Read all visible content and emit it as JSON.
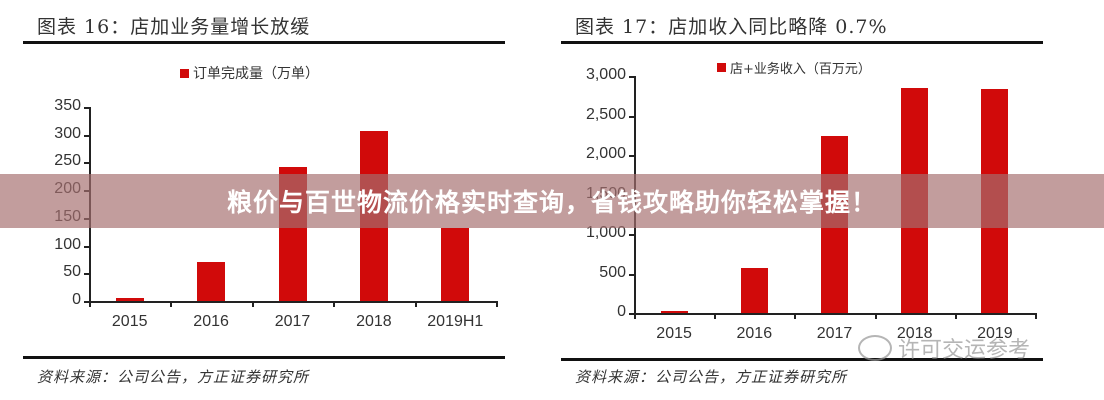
{
  "banner": {
    "text": "粮价与百世物流价格实时查询，省钱攻略助你轻松掌握！"
  },
  "watermark": {
    "text": "许可交运参考"
  },
  "charts": [
    {
      "title": "图表 16：店加业务量增长放缓",
      "legend": "订单完成量（万单）",
      "source": "资料来源：公司公告，方正证券研究所",
      "y_ticks": [
        "0",
        "50",
        "100",
        "150",
        "200",
        "250",
        "300",
        "350"
      ],
      "x_labels": [
        "2015",
        "2016",
        "2017",
        "2018",
        "2019H1"
      ]
    },
    {
      "title": "图表 17：店加收入同比略降 0.7%",
      "legend": "店+业务收入（百万元）",
      "source": "资料来源：公司公告，方正证券研究所",
      "y_ticks": [
        "0",
        "500",
        "1,000",
        "1,500",
        "2,000",
        "2,500",
        "3,000"
      ],
      "x_labels": [
        "2015",
        "2016",
        "2017",
        "2018",
        "2019"
      ]
    }
  ],
  "chart_data": [
    {
      "type": "bar",
      "title": "图表 16：店加业务量增长放缓",
      "categories": [
        "2015",
        "2016",
        "2017",
        "2018",
        "2019H1"
      ],
      "series": [
        {
          "name": "订单完成量（万单）",
          "values": [
            5,
            70,
            242,
            306,
            132
          ],
          "color": "#d10a0a"
        }
      ],
      "xlabel": "",
      "ylabel": "",
      "ylim": [
        0,
        350
      ],
      "y_ticks": [
        0,
        50,
        100,
        150,
        200,
        250,
        300,
        350
      ],
      "legend_position": "top",
      "grid": false,
      "source": "资料来源：公司公告，方正证券研究所"
    },
    {
      "type": "bar",
      "title": "图表 17：店加收入同比略降 0.7%",
      "categories": [
        "2015",
        "2016",
        "2017",
        "2018",
        "2019"
      ],
      "series": [
        {
          "name": "店+业务收入（百万元）",
          "values": [
            10,
            570,
            2240,
            2850,
            2830
          ],
          "color": "#d10a0a"
        }
      ],
      "xlabel": "",
      "ylabel": "",
      "ylim": [
        0,
        3000
      ],
      "y_ticks": [
        0,
        500,
        1000,
        1500,
        2000,
        2500,
        3000
      ],
      "legend_position": "top",
      "grid": false,
      "source": "资料来源：公司公告，方正证券研究所"
    }
  ]
}
